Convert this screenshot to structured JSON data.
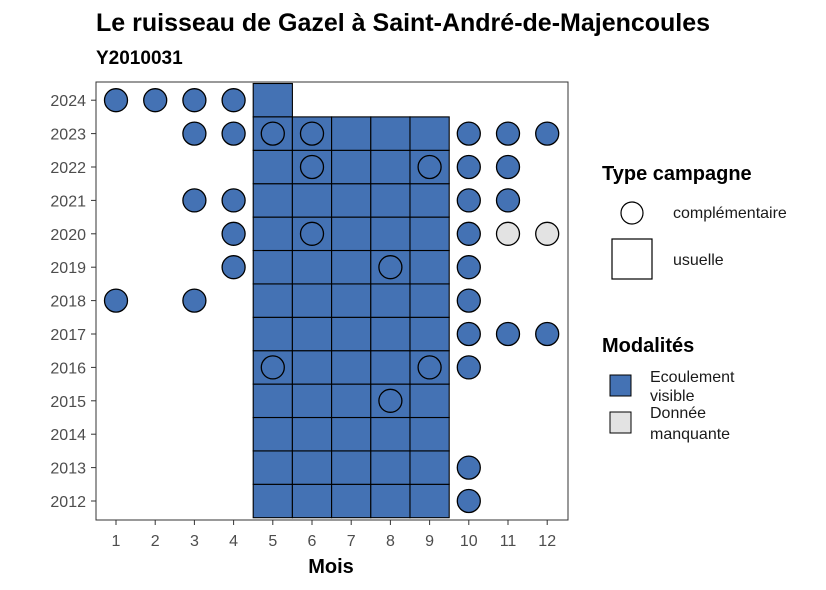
{
  "chart_data": {
    "type": "heatmap",
    "title": "Le ruisseau de Gazel à Saint-André-de-Majencoules",
    "subtitle": "Y2010031",
    "xlabel": "Mois",
    "ylabel": "",
    "x_ticks": [
      1,
      2,
      3,
      4,
      5,
      6,
      7,
      8,
      9,
      10,
      11,
      12
    ],
    "y_ticks": [
      2012,
      2013,
      2014,
      2015,
      2016,
      2017,
      2018,
      2019,
      2020,
      2021,
      2022,
      2023,
      2024
    ],
    "grid": false,
    "legend_position": "right",
    "colors": {
      "Ecoulement visible": "#4472b4",
      "Donnée manquante": "#e3e3e3"
    },
    "legend": {
      "shape_title": "Type campagne",
      "shapes": [
        {
          "label": "complémentaire",
          "shape": "circle"
        },
        {
          "label": "usuelle",
          "shape": "square"
        }
      ],
      "fill_title": "Modalités",
      "fills": [
        {
          "lines": [
            "Ecoulement",
            "visible"
          ],
          "key": "Ecoulement visible"
        },
        {
          "lines": [
            "Donnée",
            "manquante"
          ],
          "key": "Donnée manquante"
        }
      ]
    },
    "usuelle": [
      {
        "month": 5,
        "year": 2024,
        "modalite": "Ecoulement visible"
      },
      {
        "month": 5,
        "years": [
          2012,
          2013,
          2014,
          2015,
          2016,
          2017,
          2018,
          2019,
          2020,
          2021,
          2022,
          2023
        ],
        "modalite": "Ecoulement visible"
      },
      {
        "month": 6,
        "years": [
          2012,
          2013,
          2014,
          2015,
          2016,
          2017,
          2018,
          2019,
          2020,
          2021,
          2022,
          2023
        ],
        "modalite": "Ecoulement visible"
      },
      {
        "month": 7,
        "years": [
          2012,
          2013,
          2014,
          2015,
          2016,
          2017,
          2018,
          2019,
          2020,
          2021,
          2022,
          2023
        ],
        "modalite": "Ecoulement visible"
      },
      {
        "month": 8,
        "years": [
          2012,
          2013,
          2014,
          2015,
          2016,
          2017,
          2018,
          2019,
          2020,
          2021,
          2022,
          2023
        ],
        "modalite": "Ecoulement visible"
      },
      {
        "month": 9,
        "years": [
          2012,
          2013,
          2014,
          2015,
          2016,
          2017,
          2018,
          2019,
          2020,
          2021,
          2022,
          2023
        ],
        "modalite": "Ecoulement visible"
      }
    ],
    "complementaire": [
      {
        "month": 1,
        "year": 2024,
        "modalite": "Ecoulement visible"
      },
      {
        "month": 2,
        "year": 2024,
        "modalite": "Ecoulement visible"
      },
      {
        "month": 3,
        "year": 2024,
        "modalite": "Ecoulement visible"
      },
      {
        "month": 4,
        "year": 2024,
        "modalite": "Ecoulement visible"
      },
      {
        "month": 3,
        "year": 2023,
        "modalite": "Ecoulement visible"
      },
      {
        "month": 4,
        "year": 2023,
        "modalite": "Ecoulement visible"
      },
      {
        "month": 5,
        "year": 2023,
        "modalite": "Ecoulement visible"
      },
      {
        "month": 6,
        "year": 2023,
        "modalite": "Ecoulement visible"
      },
      {
        "month": 10,
        "year": 2023,
        "modalite": "Ecoulement visible"
      },
      {
        "month": 11,
        "year": 2023,
        "modalite": "Ecoulement visible"
      },
      {
        "month": 12,
        "year": 2023,
        "modalite": "Ecoulement visible"
      },
      {
        "month": 6,
        "year": 2022,
        "modalite": "Ecoulement visible"
      },
      {
        "month": 9,
        "year": 2022,
        "modalite": "Ecoulement visible"
      },
      {
        "month": 10,
        "year": 2022,
        "modalite": "Ecoulement visible"
      },
      {
        "month": 11,
        "year": 2022,
        "modalite": "Ecoulement visible"
      },
      {
        "month": 3,
        "year": 2021,
        "modalite": "Ecoulement visible"
      },
      {
        "month": 4,
        "year": 2021,
        "modalite": "Ecoulement visible"
      },
      {
        "month": 10,
        "year": 2021,
        "modalite": "Ecoulement visible"
      },
      {
        "month": 11,
        "year": 2021,
        "modalite": "Ecoulement visible"
      },
      {
        "month": 4,
        "year": 2020,
        "modalite": "Ecoulement visible"
      },
      {
        "month": 6,
        "year": 2020,
        "modalite": "Ecoulement visible"
      },
      {
        "month": 10,
        "year": 2020,
        "modalite": "Ecoulement visible"
      },
      {
        "month": 11,
        "year": 2020,
        "modalite": "Donnée manquante"
      },
      {
        "month": 12,
        "year": 2020,
        "modalite": "Donnée manquante"
      },
      {
        "month": 4,
        "year": 2019,
        "modalite": "Ecoulement visible"
      },
      {
        "month": 8,
        "year": 2019,
        "modalite": "Ecoulement visible"
      },
      {
        "month": 10,
        "year": 2019,
        "modalite": "Ecoulement visible"
      },
      {
        "month": 1,
        "year": 2018,
        "modalite": "Ecoulement visible"
      },
      {
        "month": 3,
        "year": 2018,
        "modalite": "Ecoulement visible"
      },
      {
        "month": 10,
        "year": 2018,
        "modalite": "Ecoulement visible"
      },
      {
        "month": 10,
        "year": 2017,
        "modalite": "Ecoulement visible"
      },
      {
        "month": 11,
        "year": 2017,
        "modalite": "Ecoulement visible"
      },
      {
        "month": 12,
        "year": 2017,
        "modalite": "Ecoulement visible"
      },
      {
        "month": 5,
        "year": 2016,
        "modalite": "Ecoulement visible"
      },
      {
        "month": 9,
        "year": 2016,
        "modalite": "Ecoulement visible"
      },
      {
        "month": 10,
        "year": 2016,
        "modalite": "Ecoulement visible"
      },
      {
        "month": 8,
        "year": 2015,
        "modalite": "Ecoulement visible"
      },
      {
        "month": 10,
        "year": 2013,
        "modalite": "Ecoulement visible"
      },
      {
        "month": 10,
        "year": 2012,
        "modalite": "Ecoulement visible"
      }
    ]
  }
}
